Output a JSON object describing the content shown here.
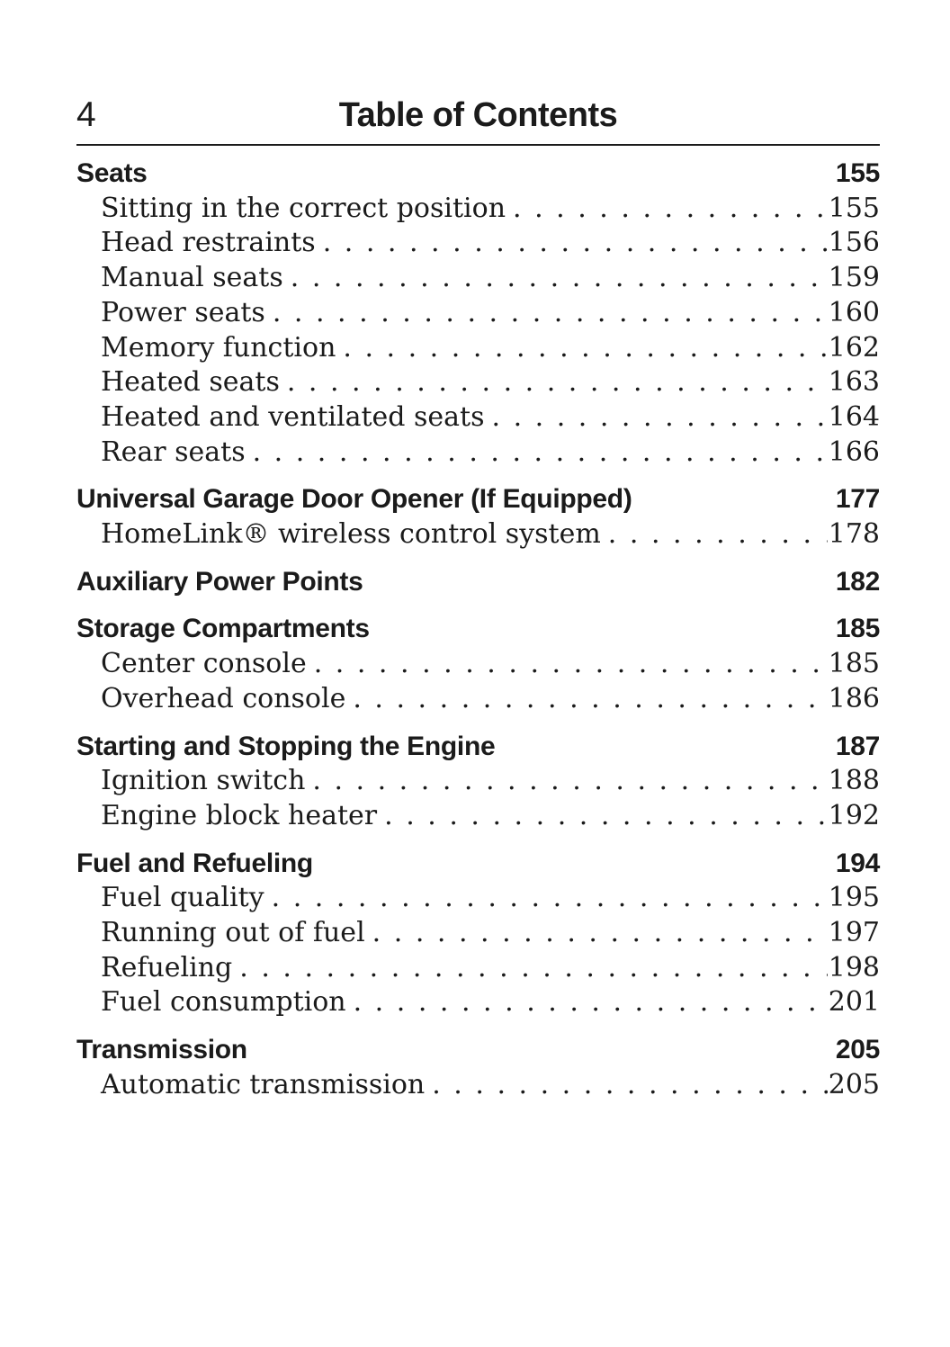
{
  "colors": {
    "ink": "#1b1b1b",
    "paper": "#ffffff"
  },
  "page": {
    "number": "4",
    "title": "Table of Contents"
  },
  "sections": [
    {
      "title": "Seats",
      "page": "155",
      "items": [
        {
          "label": "Sitting in the correct position",
          "page": "155"
        },
        {
          "label": "Head restraints",
          "page": "156"
        },
        {
          "label": "Manual seats",
          "page": "159"
        },
        {
          "label": "Power seats",
          "page": "160"
        },
        {
          "label": "Memory function",
          "page": "162"
        },
        {
          "label": "Heated seats",
          "page": "163"
        },
        {
          "label": "Heated and ventilated seats",
          "page": "164"
        },
        {
          "label": "Rear seats",
          "page": "166"
        }
      ]
    },
    {
      "title": "Universal Garage Door Opener (If Equipped)",
      "page": "177",
      "items": [
        {
          "label": "HomeLink® wireless control system",
          "page": "178"
        }
      ]
    },
    {
      "title": "Auxiliary Power Points",
      "page": "182",
      "items": []
    },
    {
      "title": "Storage Compartments",
      "page": "185",
      "items": [
        {
          "label": "Center console",
          "page": "185"
        },
        {
          "label": "Overhead console",
          "page": "186"
        }
      ]
    },
    {
      "title": "Starting and Stopping the Engine",
      "page": "187",
      "items": [
        {
          "label": "Ignition switch",
          "page": "188"
        },
        {
          "label": "Engine block heater",
          "page": "192"
        }
      ]
    },
    {
      "title": "Fuel and Refueling",
      "page": "194",
      "items": [
        {
          "label": "Fuel quality",
          "page": "195"
        },
        {
          "label": "Running out of fuel",
          "page": "197"
        },
        {
          "label": "Refueling",
          "page": "198"
        },
        {
          "label": "Fuel consumption",
          "page": "201"
        }
      ]
    },
    {
      "title": "Transmission",
      "page": "205",
      "items": [
        {
          "label": "Automatic transmission",
          "page": "205"
        }
      ]
    }
  ]
}
